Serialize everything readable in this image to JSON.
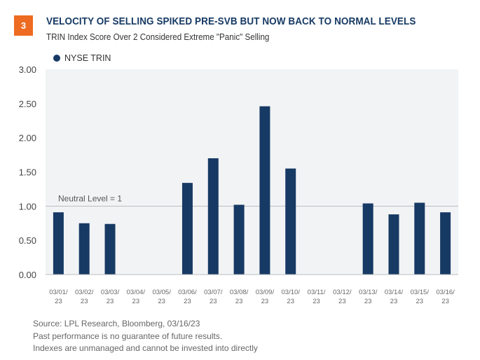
{
  "header": {
    "badge": "3",
    "title": "VELOCITY OF SELLING SPIKED PRE-SVB BUT NOW BACK TO NORMAL LEVELS",
    "subtitle": "TRIN Index Score Over 2 Considered Extreme \"Panic\" Selling"
  },
  "colors": {
    "badge": "#ee6b22",
    "bar": "#173a64",
    "title": "#173a64",
    "plot_background": "#f2f3f5"
  },
  "chart_data": {
    "type": "bar",
    "title": "VELOCITY OF SELLING SPIKED PRE-SVB BUT NOW BACK TO NORMAL LEVELS",
    "subtitle": "TRIN Index Score Over 2 Considered Extreme \"Panic\" Selling",
    "xlabel": "",
    "ylabel": "",
    "ylim": [
      0,
      3
    ],
    "yticks": [
      0,
      0.5,
      1,
      1.5,
      2,
      2.5,
      3
    ],
    "ytick_labels": [
      "0.00",
      "0.50",
      "1.00",
      "1.50",
      "2.00",
      "2.50",
      "3.00"
    ],
    "grid": false,
    "legend_position": "top-left",
    "categories": [
      "03/01/23",
      "03/02/23",
      "03/03/23",
      "03/04/23",
      "03/05/23",
      "03/06/23",
      "03/07/23",
      "03/08/23",
      "03/09/23",
      "03/10/23",
      "03/11/23",
      "03/12/23",
      "03/13/23",
      "03/14/23",
      "03/15/23",
      "03/16/23"
    ],
    "category_labels": [
      [
        "03/01/",
        "23"
      ],
      [
        "03/02/",
        "23"
      ],
      [
        "03/03/",
        "23"
      ],
      [
        "03/04/",
        "23"
      ],
      [
        "03/05/",
        "23"
      ],
      [
        "03/06/",
        "23"
      ],
      [
        "03/07/",
        "23"
      ],
      [
        "03/08/",
        "23"
      ],
      [
        "03/09/",
        "23"
      ],
      [
        "03/10/",
        "23"
      ],
      [
        "03/11/",
        "23"
      ],
      [
        "03/12/",
        "23"
      ],
      [
        "03/13/",
        "23"
      ],
      [
        "03/14/",
        "23"
      ],
      [
        "03/15/",
        "23"
      ],
      [
        "03/16/",
        "23"
      ]
    ],
    "series": [
      {
        "name": "NYSE TRIN",
        "values": [
          0.91,
          0.75,
          0.74,
          null,
          null,
          1.34,
          1.7,
          1.02,
          2.46,
          1.55,
          null,
          null,
          1.04,
          0.88,
          1.05,
          0.91
        ]
      }
    ],
    "annotations": [
      {
        "type": "hline",
        "y": 1,
        "label": "Neutral Level = 1"
      }
    ]
  },
  "footer": {
    "source": "Source: LPL Research, Bloomberg,  03/16/23",
    "disclaimer1": "Past performance is no guarantee of future results.",
    "disclaimer2": "Indexes are unmanaged and cannot be invested into directly"
  }
}
